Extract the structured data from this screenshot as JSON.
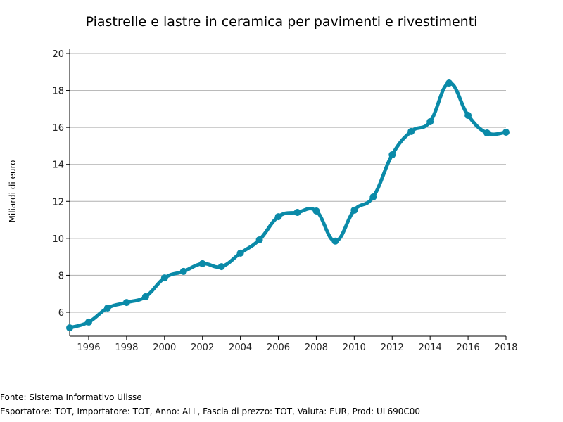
{
  "chart_data": {
    "type": "line",
    "title": "Piastrelle e lastre in ceramica per pavimenti e rivestimenti",
    "xlabel": "",
    "ylabel": "Miliardi di euro",
    "xlim": [
      1995,
      2018
    ],
    "ylim": [
      4.7,
      20
    ],
    "grid": true,
    "x_ticks": [
      1996,
      1998,
      2000,
      2002,
      2004,
      2006,
      2008,
      2010,
      2012,
      2014,
      2016,
      2018
    ],
    "y_ticks": [
      6,
      8,
      10,
      12,
      14,
      16,
      18,
      20
    ],
    "color": "#0a8aa8",
    "x": [
      1995,
      1996,
      1997,
      1998,
      1999,
      2000,
      2001,
      2002,
      2003,
      2004,
      2005,
      2006,
      2007,
      2008,
      2009,
      2010,
      2011,
      2012,
      2013,
      2014,
      2015,
      2016,
      2017,
      2018
    ],
    "values": [
      5.16,
      5.47,
      6.23,
      6.53,
      6.84,
      7.86,
      8.21,
      8.63,
      8.47,
      9.2,
      9.92,
      11.17,
      11.4,
      11.48,
      9.85,
      11.52,
      12.24,
      14.52,
      15.78,
      16.31,
      18.4,
      16.65,
      15.7,
      15.74
    ]
  },
  "footer": {
    "source": "Fonte: Sistema Informativo Ulisse",
    "filters": "Esportatore: TOT, Importatore: TOT, Anno: ALL, Fascia di prezzo: TOT, Valuta: EUR, Prod: UL690C00"
  }
}
